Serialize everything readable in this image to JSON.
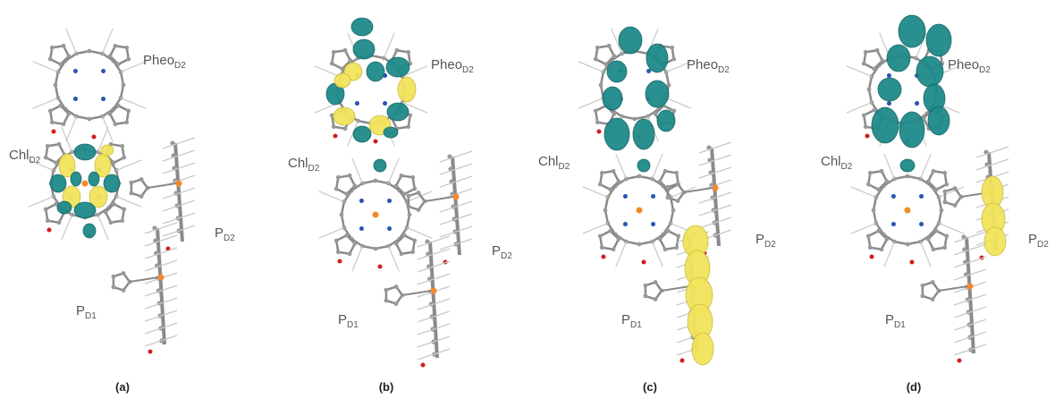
{
  "panels": [
    {
      "caption": "(a)",
      "labels": {
        "pheo": {
          "text": "Pheo",
          "sub": "D2"
        },
        "chl": {
          "text": "Chl",
          "sub": "D2"
        },
        "pd2": {
          "text": "P",
          "sub": "D2"
        },
        "pd1": {
          "text": "P",
          "sub": "D1"
        }
      }
    },
    {
      "caption": "(b)",
      "labels": {
        "pheo": {
          "text": "Pheo",
          "sub": "D2"
        },
        "chl": {
          "text": "Chl",
          "sub": "D2"
        },
        "pd2": {
          "text": "P",
          "sub": "D2"
        },
        "pd1": {
          "text": "P",
          "sub": "D1"
        }
      }
    },
    {
      "caption": "(c)",
      "labels": {
        "pheo": {
          "text": "Pheo",
          "sub": "D2"
        },
        "chl": {
          "text": "Chl",
          "sub": "D2"
        },
        "pd2": {
          "text": "P",
          "sub": "D2"
        },
        "pd1": {
          "text": "P",
          "sub": "D1"
        }
      }
    },
    {
      "caption": "(d)",
      "labels": {
        "pheo": {
          "text": "Pheo",
          "sub": "D2"
        },
        "chl": {
          "text": "Chl",
          "sub": "D2"
        },
        "pd2": {
          "text": "P",
          "sub": "D2"
        },
        "pd1": {
          "text": "P",
          "sub": "D1"
        }
      }
    }
  ]
}
